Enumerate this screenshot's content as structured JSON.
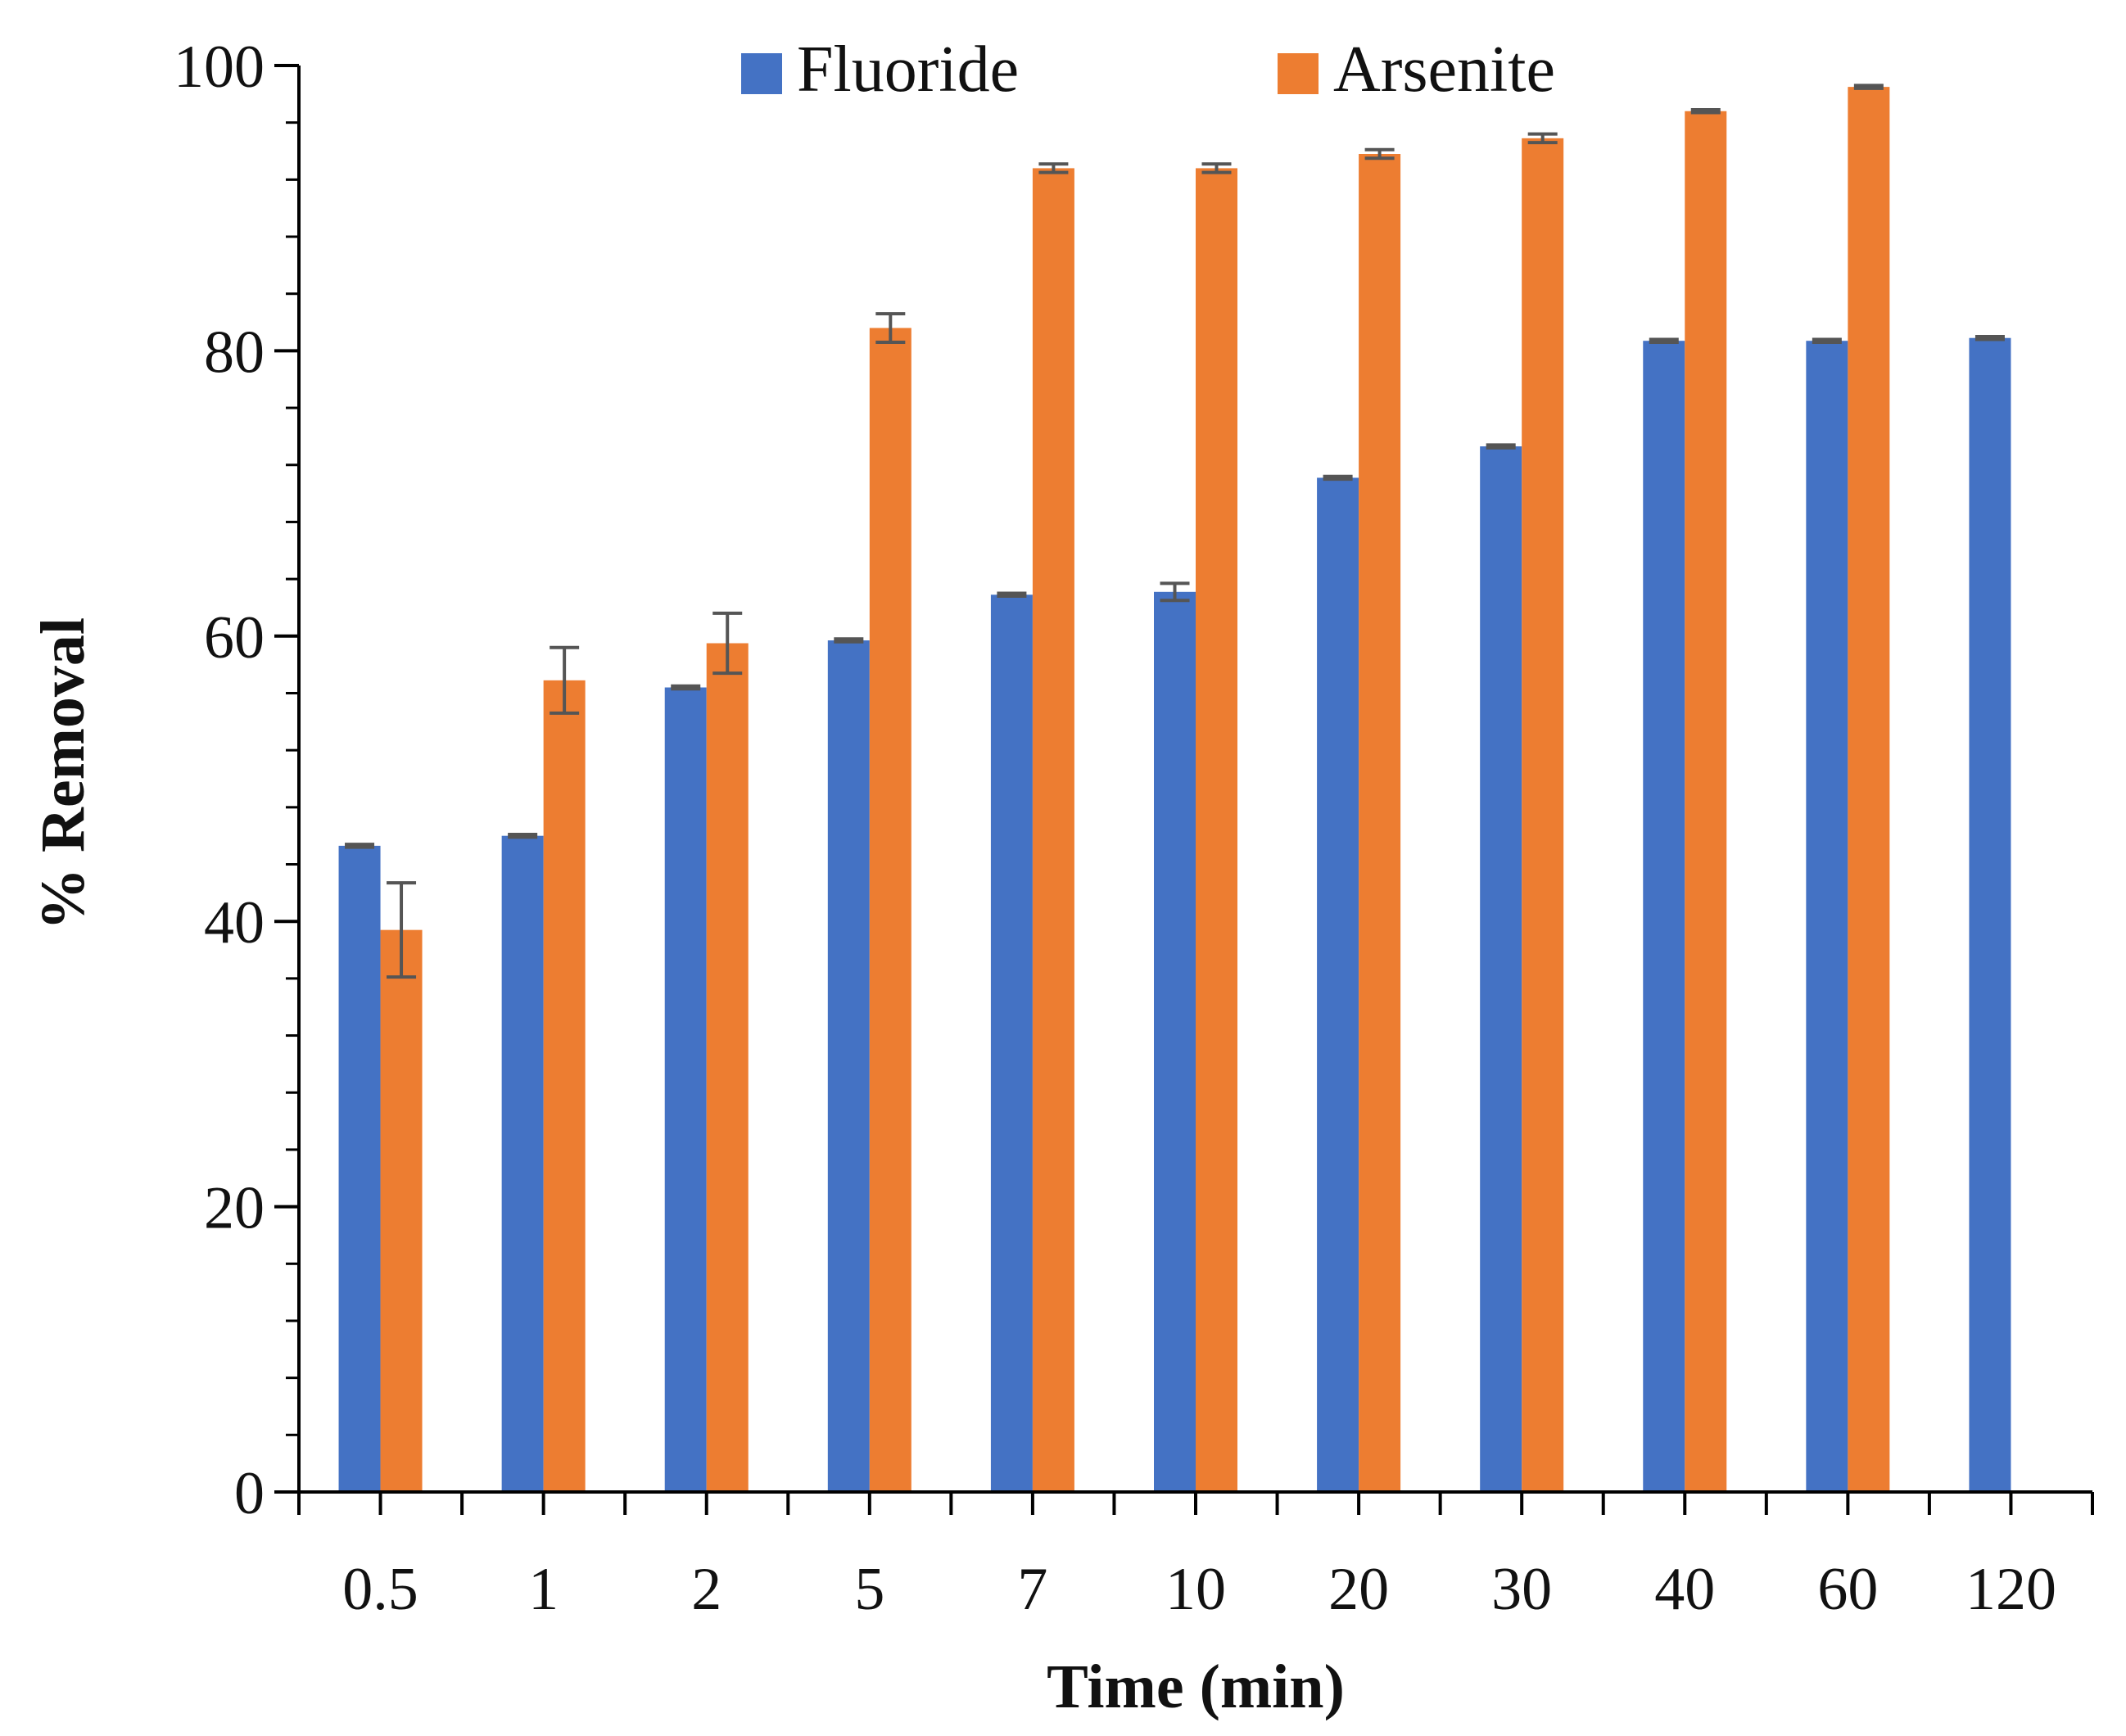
{
  "chart_data": {
    "type": "bar",
    "title": "",
    "xlabel": "Time (min)",
    "ylabel": "% Removal",
    "ylim": [
      0,
      100
    ],
    "y_major_ticks": [
      0,
      20,
      40,
      60,
      80,
      100
    ],
    "y_minor_step": 4,
    "grid": false,
    "legend_position": "top-center",
    "categories": [
      "0.5",
      "1",
      "2",
      "5",
      "7",
      "10",
      "20",
      "30",
      "40",
      "60",
      "120"
    ],
    "series": [
      {
        "name": "Fluoride",
        "color": "#4472C4",
        "values": [
          45.3,
          46.0,
          56.4,
          59.7,
          62.9,
          63.1,
          71.1,
          73.3,
          80.7,
          80.7,
          80.9
        ],
        "errors": [
          0.1,
          0.1,
          0.1,
          0.1,
          0.1,
          0.6,
          0.1,
          0.1,
          0.1,
          0.1,
          0.1
        ]
      },
      {
        "name": "Arsenite",
        "color": "#ED7D31",
        "values": [
          39.4,
          56.9,
          59.5,
          81.6,
          92.8,
          92.8,
          93.8,
          94.9,
          96.8,
          98.5,
          null
        ],
        "errors": [
          3.3,
          2.3,
          2.1,
          1.0,
          0.3,
          0.3,
          0.3,
          0.3,
          0.1,
          0.1,
          null
        ]
      }
    ],
    "error_bar_color": "#555555"
  }
}
